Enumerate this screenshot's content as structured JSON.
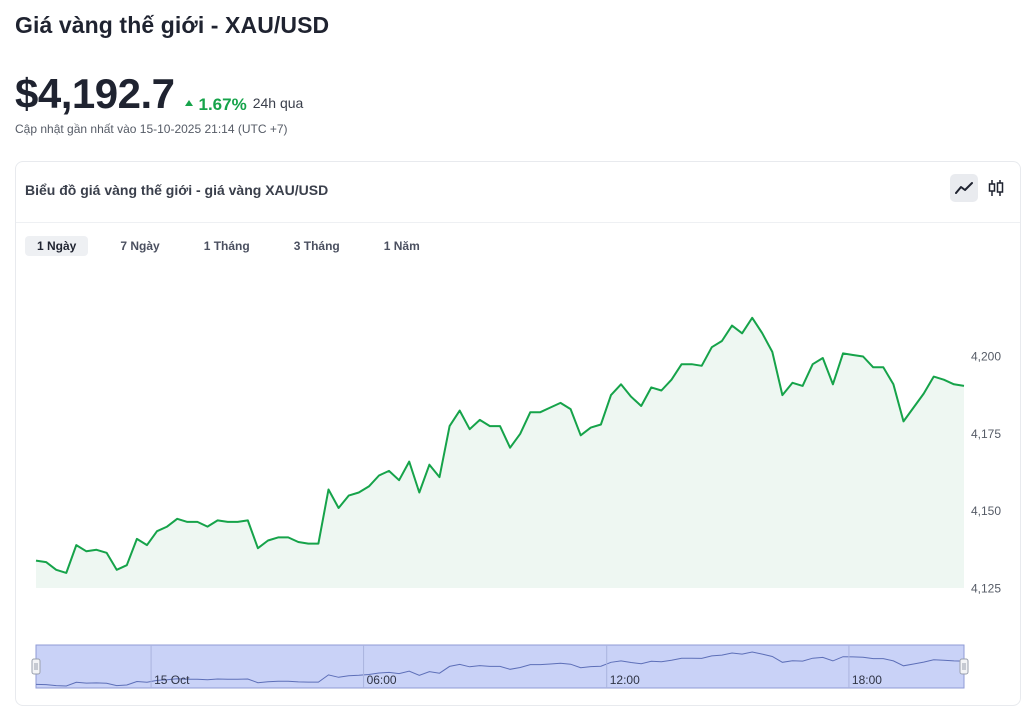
{
  "header": {
    "title": "Giá vàng thế giới - XAU/USD",
    "price": "$4,192.7",
    "change": "1.67%",
    "period": "24h qua",
    "updated": "Cập nhật gần nhất vào 15-10-2025 21:14 (UTC +7)"
  },
  "card": {
    "title": "Biểu đồ giá vàng thế giới - giá vàng XAU/USD",
    "tabs": [
      {
        "label": "1 Ngày",
        "active": true
      },
      {
        "label": "7 Ngày",
        "active": false
      },
      {
        "label": "1 Tháng",
        "active": false
      },
      {
        "label": "3 Tháng",
        "active": false
      },
      {
        "label": "1 Năm",
        "active": false
      }
    ],
    "icons": [
      "line-chart-icon",
      "candlestick-icon"
    ]
  },
  "colors": {
    "line": "#16a34a",
    "area": "#eef7f2",
    "positive": "#16a34a",
    "navigator_fill": "#c9d2f7",
    "navigator_border": "#8f9bd6"
  },
  "chart_data": {
    "type": "area",
    "title": "",
    "xlabel": "",
    "ylabel": "",
    "ylim": [
      4125,
      4215
    ],
    "y_ticks": [
      "4,125",
      "4,150",
      "4,175",
      "4,200"
    ],
    "y_tick_values": [
      4125,
      4150,
      4175,
      4200
    ],
    "navigator_ticks": [
      "15 Oct",
      "06:00",
      "12:00",
      "18:00"
    ],
    "navigator_tick_positions": [
      0.124,
      0.353,
      0.615,
      0.876
    ],
    "grid": false,
    "series": [
      {
        "values": [
          4134,
          4133.5,
          4131,
          4130,
          4139,
          4137,
          4137.5,
          4136.5,
          4131,
          4132.5,
          4141,
          4139,
          4143.5,
          4145,
          4147.5,
          4146.5,
          4146.5,
          4145,
          4147,
          4146.5,
          4146.5,
          4147,
          4138,
          4140.5,
          4141.5,
          4141.5,
          4140,
          4139.5,
          4139.5,
          4157,
          4151,
          4155,
          4156,
          4158,
          4161.5,
          4163,
          4160,
          4166,
          4156,
          4165,
          4161,
          4177.5,
          4182.5,
          4176.5,
          4179.5,
          4177.5,
          4177.5,
          4170.5,
          4175,
          4182,
          4182,
          4183.5,
          4185,
          4183,
          4174.5,
          4177,
          4178,
          4187.5,
          4191,
          4187,
          4184,
          4190,
          4189,
          4192.5,
          4197.5,
          4197.5,
          4197,
          4203,
          4205,
          4210,
          4207.5,
          4212.5,
          4207.5,
          4201.5,
          4187.5,
          4191.5,
          4190.5,
          4197.5,
          4199.5,
          4191,
          4201,
          4200.5,
          4200,
          4196.5,
          4196.5,
          4191,
          4179,
          4183.5,
          4188,
          4193.5,
          4192.5,
          4191,
          4190.5
        ]
      }
    ]
  }
}
